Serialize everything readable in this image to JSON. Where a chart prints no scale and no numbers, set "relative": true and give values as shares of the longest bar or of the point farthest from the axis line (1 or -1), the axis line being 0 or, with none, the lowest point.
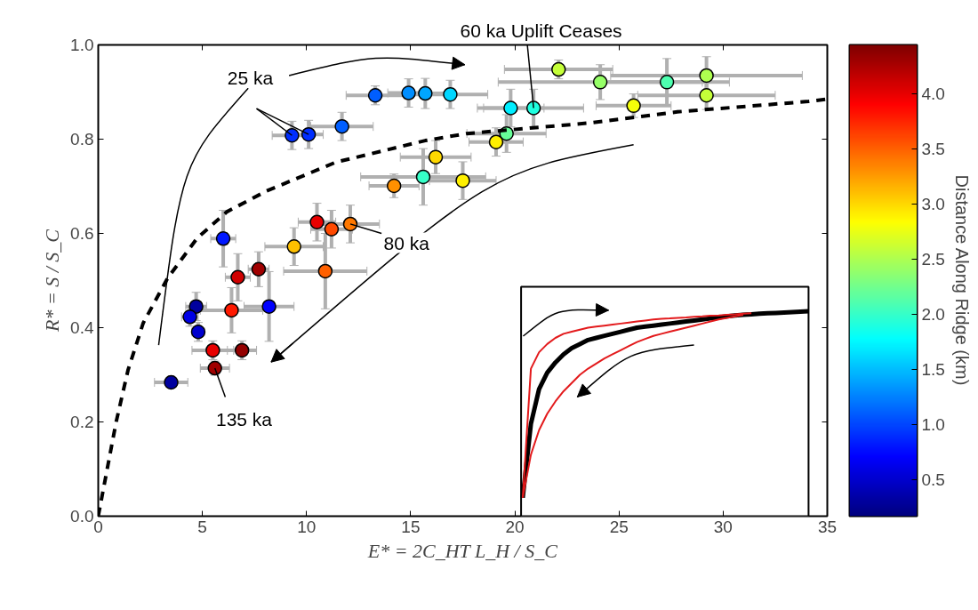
{
  "chart_data": [
    {
      "type": "scatter",
      "xlabel": "E* = 2C_HT L_H / S_C",
      "ylabel": "R* = S / S_C",
      "clabel": "Distance Along Ridge (km)",
      "xlim": [
        0,
        35
      ],
      "ylim": [
        0,
        1
      ],
      "xticks": [
        0,
        5,
        10,
        15,
        20,
        25,
        30,
        35
      ],
      "yticks": [
        {
          "value": 0,
          "label": "0.0"
        },
        0.2,
        0.4,
        0.6,
        0.8,
        {
          "value": 1,
          "label": "1.0"
        }
      ],
      "clim": [
        0.17,
        4.44
      ],
      "cticks": [
        0.5,
        {
          "value": 1,
          "label": "1.0"
        },
        1.5,
        {
          "value": 2,
          "label": "2.0"
        },
        2.5,
        {
          "value": 3,
          "label": "3.0"
        },
        3.5,
        {
          "value": 4,
          "label": "4.0"
        }
      ],
      "grid": false,
      "series": [
        {
          "type": "scatter",
          "marker": "circle",
          "x": [
            13.3,
            14.9,
            15.7,
            16.9,
            9.3,
            10.1,
            11.7,
            16.2,
            15.6,
            14.2,
            17.5,
            6.0,
            10.5,
            11.2,
            12.1,
            9.4,
            10.9,
            6.7,
            7.7,
            4.7,
            4.4,
            4.8,
            6.4,
            8.2,
            5.5,
            6.9,
            5.6,
            3.5,
            22.1,
            24.1,
            27.3,
            29.2,
            29.2,
            25.7,
            19.8,
            20.9,
            19.6,
            19.1
          ],
          "values": [
            0.893,
            0.898,
            0.897,
            0.895,
            0.808,
            0.81,
            0.827,
            0.762,
            0.72,
            0.701,
            0.712,
            0.589,
            0.624,
            0.609,
            0.62,
            0.572,
            0.52,
            0.507,
            0.524,
            0.445,
            0.423,
            0.391,
            0.437,
            0.445,
            0.352,
            0.352,
            0.314,
            0.284,
            0.948,
            0.921,
            0.921,
            0.935,
            0.893,
            0.871,
            0.866,
            0.866,
            0.812,
            0.794
          ],
          "colors": [
            "#005eff",
            "#008eff",
            "#00a6ff",
            "#00d6ff",
            "#002eff",
            "#002eff",
            "#005eff",
            "#ffd800",
            "#36ffc8",
            "#ff9000",
            "#fff000",
            "#0017ff",
            "#e80000",
            "#ff4900",
            "#ff7800",
            "#ffc000",
            "#ff6000",
            "#d00000",
            "#a00000",
            "#00009e",
            "#0000e6",
            "#0000ce",
            "#ff1900",
            "#0000fe",
            "#e80000",
            "#940000",
            "#a00000",
            "#00009e",
            "#c5ff39",
            "#96ff68",
            "#4effb0",
            "#aeff50",
            "#c5ff39",
            "#f5ff09",
            "#00eeff",
            "#1fffe0",
            "#66ff98",
            "#fff000"
          ],
          "errors": [
            0.02,
            0.03,
            0.032,
            0.03,
            0.03,
            0.03,
            0.03,
            0.035,
            0.06,
            0.025,
            0.04,
            0.06,
            0.04,
            0.04,
            0.04,
            0.04,
            0.08,
            0.05,
            0.037,
            0.03,
            0.02,
            0.02,
            0.048,
            0.074,
            0.02,
            0.02,
            0.015,
            0,
            0.02,
            0.037,
            0.05,
            0.04,
            0.03,
            0.025,
            0.04,
            0.04,
            0.04,
            0.03
          ],
          "xerrors": [
            1.4,
            1.0,
            1.0,
            1.8,
            0.95,
            0.7,
            1.5,
            1.7,
            3.0,
            1.2,
            1.6,
            0.6,
            0.9,
            1.0,
            1.4,
            1.4,
            2.0,
            0.6,
            0.5,
            0.5,
            0.4,
            0.3,
            1.5,
            1.2,
            1.0,
            0.7,
            0.7,
            0.8,
            2.6,
            4.9,
            3.0,
            4.6,
            3.3,
            1.8,
            1.6,
            2.4,
            1.9,
            1.3
          ]
        },
        {
          "type": "line",
          "color": "#000000",
          "line_style": "dashed",
          "x": [
            0,
            0.43,
            0.86,
            1.43,
            2.16,
            3.33,
            4.75,
            6.18,
            8.08,
            11.4,
            15.7,
            17.7,
            23.5,
            27.8,
            34.1,
            35
          ],
          "values": [
            0,
            0.1,
            0.2,
            0.31,
            0.41,
            0.505,
            0.59,
            0.646,
            0.69,
            0.751,
            0.797,
            0.812,
            0.834,
            0.858,
            0.88,
            0.885
          ]
        }
      ],
      "annotations": [
        {
          "text": "25 ka",
          "x": 9.3,
          "y": 0.808
        },
        {
          "text": "60 ka Uplift Ceases",
          "x": 20.9,
          "y": 0.866
        },
        {
          "text": "80 ka",
          "x": 12.1,
          "y": 0.62
        },
        {
          "text": "135 ka",
          "x": 5.6,
          "y": 0.314
        }
      ]
    },
    {
      "type": "line",
      "relative": true,
      "categories": [
        null,
        null,
        null,
        null,
        null,
        null,
        null,
        null,
        null,
        null,
        null,
        null,
        null,
        null,
        null,
        null,
        null,
        null,
        null,
        null,
        null,
        null,
        null,
        null,
        null,
        null,
        null,
        null,
        null,
        null,
        null,
        null,
        null,
        null,
        null,
        null
      ],
      "series": [
        {
          "color": "#000000",
          "values": [
            0.09,
            0.45,
            0.62,
            0.7,
            0.75,
            0.79,
            0.82,
            0.84,
            0.86,
            0.87,
            0.88,
            0.89,
            0.9,
            0.91,
            0.92,
            0.925,
            0.93,
            0.935,
            0.94,
            0.945,
            0.95,
            0.955,
            0.96,
            0.965,
            0.97,
            0.975,
            0.98,
            0.983,
            0.985,
            0.988,
            0.99,
            0.992,
            0.994,
            0.996,
            0.998,
            1.0
          ]
        },
        {
          "color": "#e31a1c",
          "values": [
            0.09,
            0.72,
            0.8,
            0.84,
            0.87,
            0.89,
            0.9,
            0.91,
            0.92,
            0.925,
            0.93,
            0.935,
            0.94,
            0.945,
            0.95,
            0.955,
            0.96,
            0.963,
            0.965,
            0.968,
            0.97,
            0.973,
            0.975,
            0.978,
            0.98,
            0.983,
            0.985,
            0.988,
            0.99,
            null,
            null,
            null,
            null,
            null,
            null,
            null
          ]
        },
        {
          "color": "#e31a1c",
          "values": [
            0.09,
            0.3,
            0.42,
            0.5,
            0.56,
            0.61,
            0.65,
            0.69,
            0.72,
            0.745,
            0.77,
            0.79,
            0.81,
            0.83,
            0.85,
            0.865,
            0.88,
            0.89,
            0.9,
            0.91,
            0.92,
            0.93,
            0.94,
            0.95,
            0.96,
            0.968,
            0.975,
            0.983,
            null,
            null,
            null,
            null,
            null,
            null,
            null,
            null
          ]
        }
      ]
    }
  ]
}
